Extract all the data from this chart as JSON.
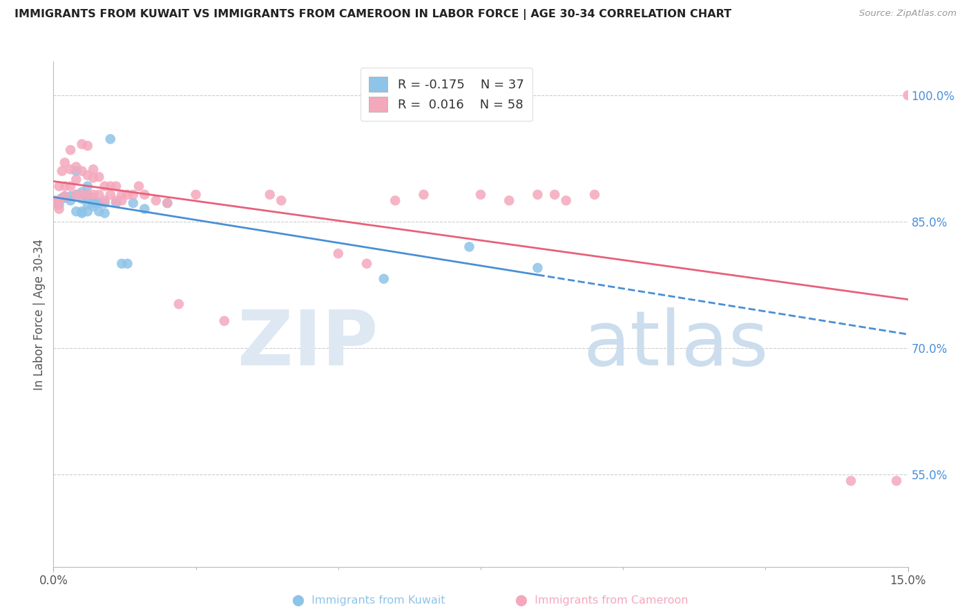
{
  "title": "IMMIGRANTS FROM KUWAIT VS IMMIGRANTS FROM CAMEROON IN LABOR FORCE | AGE 30-34 CORRELATION CHART",
  "source": "Source: ZipAtlas.com",
  "ylabel": "In Labor Force | Age 30-34",
  "ytick_vals": [
    0.55,
    0.7,
    0.85,
    1.0
  ],
  "ytick_labels": [
    "55.0%",
    "70.0%",
    "85.0%",
    "100.0%"
  ],
  "xmin": 0.0,
  "xmax": 0.15,
  "ymin": 0.44,
  "ymax": 1.04,
  "legend_r_kuwait": "-0.175",
  "legend_n_kuwait": "37",
  "legend_r_cameroon": "0.016",
  "legend_n_cameroon": "58",
  "kuwait_color": "#8ec4e8",
  "cameroon_color": "#f4a8bc",
  "line_kuwait_color": "#4a8fd4",
  "line_cameroon_color": "#e8607a",
  "kuwait_x": [
    0.0005,
    0.001,
    0.0015,
    0.002,
    0.002,
    0.003,
    0.003,
    0.004,
    0.004,
    0.004,
    0.005,
    0.005,
    0.005,
    0.005,
    0.006,
    0.006,
    0.006,
    0.006,
    0.006,
    0.007,
    0.007,
    0.007,
    0.0075,
    0.008,
    0.008,
    0.009,
    0.009,
    0.01,
    0.011,
    0.012,
    0.013,
    0.014,
    0.016,
    0.02,
    0.058,
    0.073,
    0.085
  ],
  "kuwait_y": [
    0.873,
    0.87,
    0.878,
    0.878,
    0.88,
    0.875,
    0.88,
    0.91,
    0.882,
    0.862,
    0.885,
    0.877,
    0.862,
    0.86,
    0.892,
    0.882,
    0.878,
    0.87,
    0.862,
    0.878,
    0.872,
    0.868,
    0.872,
    0.872,
    0.862,
    0.872,
    0.86,
    0.948,
    0.872,
    0.8,
    0.8,
    0.872,
    0.865,
    0.872,
    0.782,
    0.82,
    0.795
  ],
  "cameroon_x": [
    0.0005,
    0.0007,
    0.001,
    0.001,
    0.001,
    0.0015,
    0.002,
    0.002,
    0.002,
    0.003,
    0.003,
    0.003,
    0.004,
    0.004,
    0.004,
    0.005,
    0.005,
    0.005,
    0.006,
    0.006,
    0.006,
    0.007,
    0.007,
    0.007,
    0.008,
    0.008,
    0.009,
    0.009,
    0.01,
    0.01,
    0.011,
    0.011,
    0.012,
    0.012,
    0.013,
    0.014,
    0.015,
    0.016,
    0.018,
    0.02,
    0.022,
    0.025,
    0.03,
    0.038,
    0.04,
    0.05,
    0.055,
    0.06,
    0.065,
    0.075,
    0.08,
    0.085,
    0.088,
    0.09,
    0.095,
    0.14,
    0.148,
    0.15
  ],
  "cameroon_y": [
    0.875,
    0.87,
    0.892,
    0.875,
    0.865,
    0.91,
    0.92,
    0.892,
    0.88,
    0.935,
    0.912,
    0.892,
    0.915,
    0.9,
    0.882,
    0.942,
    0.91,
    0.882,
    0.94,
    0.905,
    0.882,
    0.912,
    0.902,
    0.882,
    0.903,
    0.882,
    0.892,
    0.875,
    0.892,
    0.882,
    0.892,
    0.875,
    0.882,
    0.875,
    0.882,
    0.882,
    0.892,
    0.882,
    0.875,
    0.872,
    0.752,
    0.882,
    0.732,
    0.882,
    0.875,
    0.812,
    0.8,
    0.875,
    0.882,
    0.882,
    0.875,
    0.882,
    0.882,
    0.875,
    0.882,
    0.542,
    0.542,
    1.0
  ]
}
